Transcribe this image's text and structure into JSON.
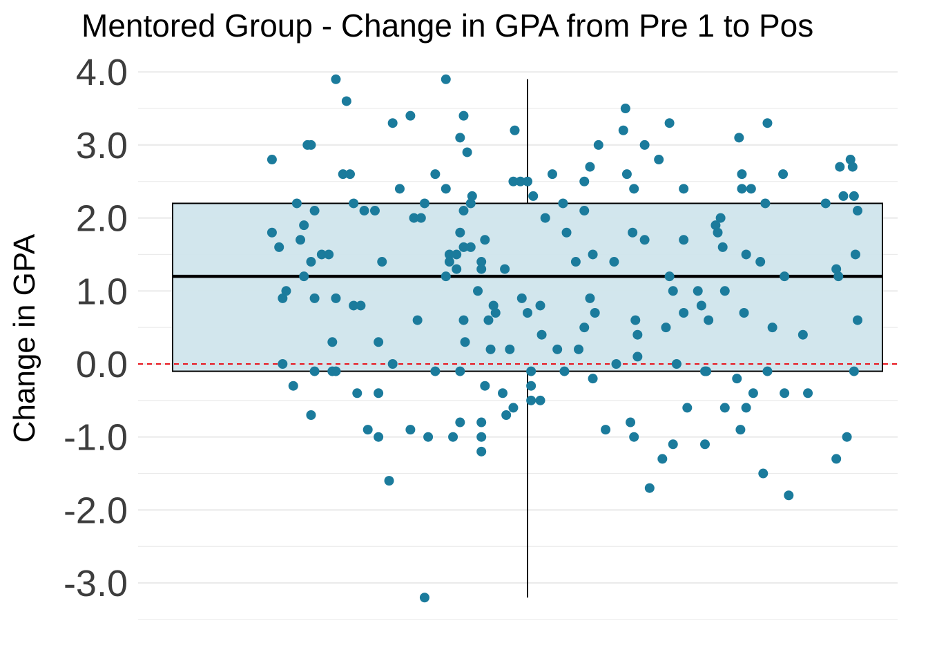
{
  "chart_data": {
    "type": "scatter",
    "title": "Mentored Group - Change in GPA from Pre 1 to Pos",
    "xlabel": "",
    "ylabel": "Change in GPA",
    "ylim": [
      -3.5,
      4.0
    ],
    "yticks": [
      4.0,
      3.0,
      2.0,
      1.0,
      0.0,
      -1.0,
      -2.0,
      -3.0
    ],
    "ytick_labels": [
      "4.0",
      "3.0",
      "2.0",
      "1.0",
      "0.0",
      "-1.0",
      "-2.0",
      "-3.0"
    ],
    "grid": true,
    "reference_line": {
      "y": 0.0,
      "style": "dashed",
      "color": "#e8141c"
    },
    "boxplot": {
      "q1": -0.1,
      "median": 1.2,
      "q3": 2.2,
      "whisker_low": -3.2,
      "whisker_high": 3.9,
      "fill": "#d0e5ec",
      "stroke": "#000000"
    },
    "point_color": "#1b7b9c",
    "points": [
      [
        0.14,
        2.8
      ],
      [
        0.14,
        1.8
      ],
      [
        0.15,
        1.6
      ],
      [
        0.155,
        0.9
      ],
      [
        0.155,
        0.0
      ],
      [
        0.16,
        1.0
      ],
      [
        0.17,
        -0.3
      ],
      [
        0.175,
        2.2
      ],
      [
        0.18,
        1.7
      ],
      [
        0.185,
        1.9
      ],
      [
        0.185,
        1.2
      ],
      [
        0.19,
        3.0
      ],
      [
        0.195,
        3.0
      ],
      [
        0.195,
        1.4
      ],
      [
        0.195,
        -0.7
      ],
      [
        0.2,
        0.9
      ],
      [
        0.2,
        2.1
      ],
      [
        0.2,
        -0.1
      ],
      [
        0.21,
        1.5
      ],
      [
        0.22,
        1.5
      ],
      [
        0.225,
        0.3
      ],
      [
        0.225,
        -0.1
      ],
      [
        0.23,
        0.9
      ],
      [
        0.23,
        -0.1
      ],
      [
        0.23,
        3.9
      ],
      [
        0.24,
        2.6
      ],
      [
        0.245,
        3.6
      ],
      [
        0.25,
        2.6
      ],
      [
        0.255,
        2.2
      ],
      [
        0.255,
        0.8
      ],
      [
        0.26,
        -0.4
      ],
      [
        0.265,
        0.8
      ],
      [
        0.27,
        2.1
      ],
      [
        0.275,
        -0.9
      ],
      [
        0.285,
        2.1
      ],
      [
        0.29,
        -0.4
      ],
      [
        0.29,
        -1.0
      ],
      [
        0.29,
        0.3
      ],
      [
        0.295,
        1.4
      ],
      [
        0.305,
        -1.6
      ],
      [
        0.31,
        3.3
      ],
      [
        0.31,
        0.0
      ],
      [
        0.32,
        2.4
      ],
      [
        0.335,
        -0.9
      ],
      [
        0.335,
        3.4
      ],
      [
        0.34,
        2.0
      ],
      [
        0.345,
        0.6
      ],
      [
        0.35,
        2.0
      ],
      [
        0.355,
        2.2
      ],
      [
        0.355,
        -3.2
      ],
      [
        0.36,
        -1.0
      ],
      [
        0.37,
        2.6
      ],
      [
        0.37,
        -0.1
      ],
      [
        0.385,
        3.9
      ],
      [
        0.385,
        2.4
      ],
      [
        0.385,
        1.2
      ],
      [
        0.39,
        1.5
      ],
      [
        0.39,
        1.4
      ],
      [
        0.395,
        -1.0
      ],
      [
        0.4,
        1.3
      ],
      [
        0.4,
        1.5
      ],
      [
        0.405,
        3.1
      ],
      [
        0.405,
        -0.8
      ],
      [
        0.405,
        1.8
      ],
      [
        0.405,
        -0.1
      ],
      [
        0.41,
        3.4
      ],
      [
        0.41,
        2.1
      ],
      [
        0.41,
        1.6
      ],
      [
        0.41,
        0.6
      ],
      [
        0.412,
        0.3
      ],
      [
        0.415,
        2.9
      ],
      [
        0.42,
        1.6
      ],
      [
        0.42,
        2.2
      ],
      [
        0.422,
        2.3
      ],
      [
        0.43,
        1.0
      ],
      [
        0.435,
        1.4
      ],
      [
        0.435,
        1.3
      ],
      [
        0.435,
        -0.8
      ],
      [
        0.435,
        -1.0
      ],
      [
        0.435,
        -1.2
      ],
      [
        0.44,
        1.7
      ],
      [
        0.44,
        -0.3
      ],
      [
        0.445,
        0.6
      ],
      [
        0.448,
        0.2
      ],
      [
        0.452,
        0.8
      ],
      [
        0.455,
        0.7
      ],
      [
        0.465,
        -0.4
      ],
      [
        0.468,
        1.3
      ],
      [
        0.47,
        -0.7
      ],
      [
        0.475,
        0.2
      ],
      [
        0.48,
        -0.6
      ],
      [
        0.48,
        2.5
      ],
      [
        0.482,
        3.2
      ],
      [
        0.49,
        2.5
      ],
      [
        0.492,
        0.9
      ],
      [
        0.5,
        2.5
      ],
      [
        0.5,
        0.7
      ],
      [
        0.505,
        -0.1
      ],
      [
        0.505,
        -0.3
      ],
      [
        0.505,
        -0.5
      ],
      [
        0.508,
        2.3
      ],
      [
        0.518,
        0.8
      ],
      [
        0.518,
        -0.5
      ],
      [
        0.52,
        0.4
      ],
      [
        0.525,
        2.0
      ],
      [
        0.535,
        2.6
      ],
      [
        0.542,
        0.2
      ],
      [
        0.55,
        2.2
      ],
      [
        0.552,
        -0.1
      ],
      [
        0.555,
        1.8
      ],
      [
        0.568,
        1.4
      ],
      [
        0.572,
        0.2
      ],
      [
        0.58,
        2.5
      ],
      [
        0.58,
        2.1
      ],
      [
        0.58,
        0.5
      ],
      [
        0.588,
        2.7
      ],
      [
        0.588,
        0.9
      ],
      [
        0.592,
        1.5
      ],
      [
        0.592,
        -0.2
      ],
      [
        0.595,
        0.7
      ],
      [
        0.6,
        3.0
      ],
      [
        0.61,
        -0.9
      ],
      [
        0.622,
        1.4
      ],
      [
        0.625,
        0.0
      ],
      [
        0.635,
        3.2
      ],
      [
        0.638,
        3.5
      ],
      [
        0.64,
        2.6
      ],
      [
        0.645,
        -0.8
      ],
      [
        0.648,
        1.8
      ],
      [
        0.65,
        2.4
      ],
      [
        0.65,
        -1.0
      ],
      [
        0.652,
        0.6
      ],
      [
        0.655,
        0.1
      ],
      [
        0.655,
        0.4
      ],
      [
        0.665,
        3.0
      ],
      [
        0.665,
        1.7
      ],
      [
        0.672,
        -1.7
      ],
      [
        0.685,
        2.8
      ],
      [
        0.69,
        -1.3
      ],
      [
        0.695,
        0.5
      ],
      [
        0.7,
        3.3
      ],
      [
        0.7,
        1.2
      ],
      [
        0.705,
        -1.1
      ],
      [
        0.705,
        1.0
      ],
      [
        0.71,
        0.0
      ],
      [
        0.72,
        2.4
      ],
      [
        0.72,
        1.7
      ],
      [
        0.72,
        0.7
      ],
      [
        0.725,
        -0.6
      ],
      [
        0.74,
        1.0
      ],
      [
        0.745,
        0.8
      ],
      [
        0.75,
        -1.1
      ],
      [
        0.75,
        -0.1
      ],
      [
        0.752,
        -0.1
      ],
      [
        0.755,
        0.6
      ],
      [
        0.765,
        1.9
      ],
      [
        0.768,
        1.8
      ],
      [
        0.772,
        2.0
      ],
      [
        0.775,
        1.6
      ],
      [
        0.778,
        1.0
      ],
      [
        0.778,
        -0.6
      ],
      [
        0.795,
        -0.2
      ],
      [
        0.798,
        3.1
      ],
      [
        0.8,
        -0.9
      ],
      [
        0.802,
        2.6
      ],
      [
        0.802,
        2.4
      ],
      [
        0.805,
        0.7
      ],
      [
        0.808,
        1.5
      ],
      [
        0.808,
        -0.6
      ],
      [
        0.815,
        2.4
      ],
      [
        0.818,
        -0.4
      ],
      [
        0.828,
        1.4
      ],
      [
        0.832,
        -1.5
      ],
      [
        0.835,
        2.2
      ],
      [
        0.838,
        3.3
      ],
      [
        0.838,
        -0.1
      ],
      [
        0.845,
        0.5
      ],
      [
        0.86,
        2.6
      ],
      [
        0.862,
        1.2
      ],
      [
        0.862,
        -0.4
      ],
      [
        0.868,
        -1.8
      ],
      [
        0.888,
        0.4
      ],
      [
        0.895,
        -0.4
      ],
      [
        0.92,
        2.2
      ],
      [
        0.935,
        1.3
      ],
      [
        0.935,
        -1.3
      ],
      [
        0.938,
        1.2
      ],
      [
        0.94,
        2.7
      ],
      [
        0.945,
        2.3
      ],
      [
        0.95,
        -1.0
      ],
      [
        0.955,
        2.8
      ],
      [
        0.958,
        2.7
      ],
      [
        0.96,
        2.3
      ],
      [
        0.96,
        -0.1
      ],
      [
        0.962,
        1.5
      ],
      [
        0.965,
        0.6
      ],
      [
        0.965,
        2.1
      ]
    ]
  }
}
